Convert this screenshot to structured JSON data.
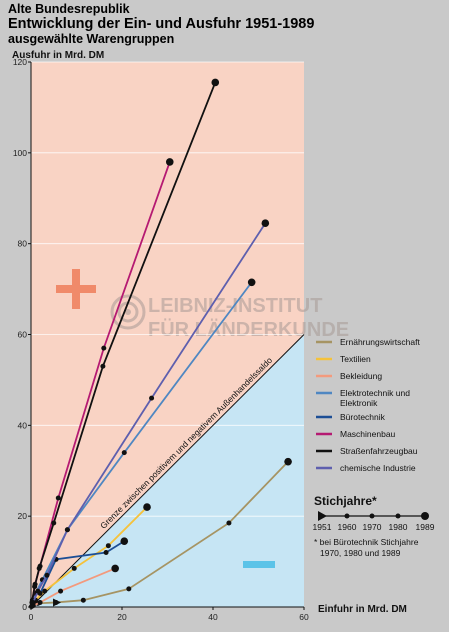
{
  "header": {
    "line1": "Alte Bundesrepublik",
    "line2": "Entwicklung der Ein- und Ausfuhr 1951-1989",
    "line3": "ausgewählte Warengruppen"
  },
  "watermark": {
    "line1": "LEIBNIZ-INSTITUT",
    "line2": "FÜR LÄNDERKUNDE"
  },
  "chart_data": {
    "type": "line",
    "ylabel": "Ausfuhr in Mrd. DM",
    "xlabel": "Einfuhr in Mrd. DM",
    "xlim": [
      0,
      60
    ],
    "ylim": [
      0,
      120
    ],
    "xticks": [
      0,
      20,
      40,
      60
    ],
    "yticks": [
      0,
      20,
      40,
      60,
      80,
      100,
      120
    ],
    "grid": "horizontal",
    "regions": {
      "above_diagonal_color": "#f9d3c4",
      "below_diagonal_color": "#c6e5f4",
      "plus_symbol_color": "#f08a6a",
      "minus_symbol_color": "#5bc3e8"
    },
    "balance_line_label": "Grenze zwischen positivem und negativem Außenhandelssaldo",
    "series": [
      {
        "name": "Ernährungswirtschaft",
        "color": "#a69463",
        "x": [
          0.5,
          1.5,
          5.5,
          11.5,
          21.5,
          43.5,
          56.5
        ],
        "y": [
          0.5,
          0.8,
          1.0,
          1.5,
          4.0,
          18.5,
          32.0
        ]
      },
      {
        "name": "Textilien",
        "color": "#f5c23b",
        "x": [
          0.3,
          1.0,
          3.0,
          9.5,
          17,
          25.5
        ],
        "y": [
          0.5,
          1.5,
          3.5,
          8.5,
          13.5,
          22.0
        ]
      },
      {
        "name": "Bekleidung",
        "color": "#f39a7d",
        "x": [
          0.1,
          0.5,
          2.0,
          6.5,
          18.5
        ],
        "y": [
          0.1,
          0.3,
          1.0,
          3.5,
          8.5
        ]
      },
      {
        "name": "Elektrotechnik und Elektronik",
        "color": "#4f87c2",
        "x": [
          0.3,
          1.0,
          2.5,
          8.0,
          20.5,
          48.5
        ],
        "y": [
          1.0,
          3.0,
          6.0,
          17.0,
          34.0,
          71.5
        ]
      },
      {
        "name": "Bürotechnik",
        "color": "#1c4e95",
        "x": [
          2.0,
          5.5,
          16.5,
          20.5
        ],
        "y": [
          3.0,
          10.5,
          12.0,
          14.5
        ]
      },
      {
        "name": "Maschinenbau",
        "color": "#b51a72",
        "x": [
          0.3,
          0.9,
          2.0,
          6.0,
          16.0,
          30.5
        ],
        "y": [
          1.5,
          5.0,
          9.0,
          24.0,
          57.0,
          98.0
        ]
      },
      {
        "name": "Straßenfahrzeugbau",
        "color": "#111111",
        "x": [
          0.2,
          0.8,
          1.8,
          5.0,
          15.8,
          40.5
        ],
        "y": [
          1.0,
          4.5,
          8.5,
          18.5,
          53.0,
          115.5
        ]
      },
      {
        "name": "chemische Industrie",
        "color": "#5e5fae",
        "x": [
          0.5,
          1.5,
          3.5,
          8.0,
          26.5,
          51.5
        ],
        "y": [
          1.0,
          3.5,
          7.0,
          17.0,
          46.0,
          84.5
        ]
      }
    ],
    "stichjahre": {
      "title": "Stichjahre*",
      "years": [
        "1951",
        "1960",
        "1970",
        "1980",
        "1989"
      ],
      "note_line1": "* bei Bürotechnik Stichjahre",
      "note_line2": "1970, 1980 und 1989"
    }
  }
}
